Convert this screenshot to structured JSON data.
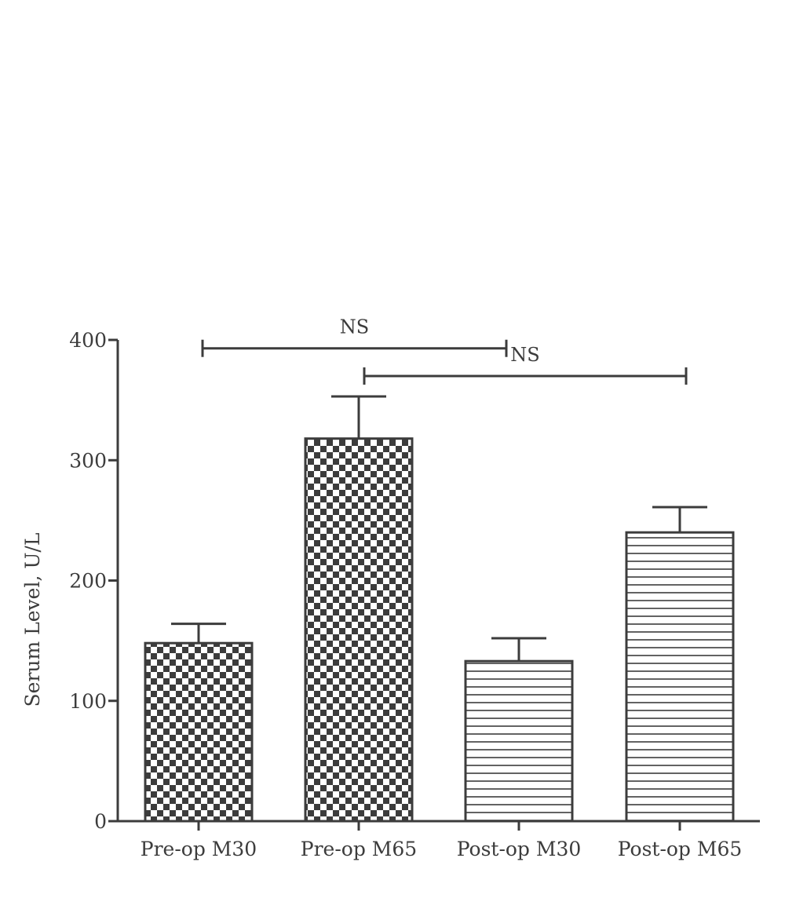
{
  "chart_data": {
    "type": "bar",
    "ylabel": "Serum Level, U/L",
    "xlabel": "",
    "ylim": [
      0,
      400
    ],
    "yticks": [
      0,
      100,
      200,
      300,
      400
    ],
    "categories": [
      "Pre-op M30",
      "Pre-op M65",
      "Post-op M30",
      "Post-op M65"
    ],
    "values": [
      148,
      318,
      133,
      240
    ],
    "error_upper": [
      164,
      353,
      152,
      261
    ],
    "bar_patterns": [
      "checkered",
      "checkered",
      "horizontal-lines",
      "horizontal-lines"
    ],
    "significance": [
      {
        "from": "Pre-op M30",
        "to": "Post-op M30",
        "label": "NS",
        "y": 393
      },
      {
        "from": "Pre-op M65",
        "to": "Post-op M65",
        "label": "NS",
        "y": 370
      }
    ],
    "grid": false,
    "colors": {
      "ink": "#3c3c3c",
      "background": "#ffffff"
    }
  }
}
